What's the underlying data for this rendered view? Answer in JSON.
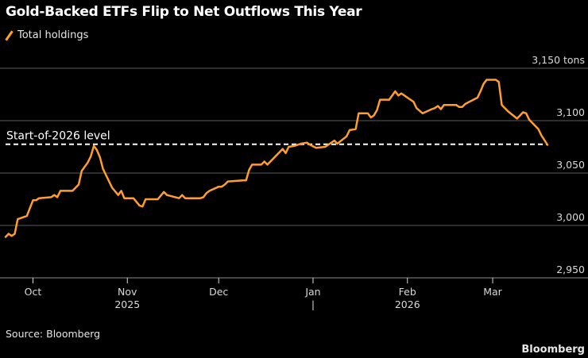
{
  "title": "Gold-Backed ETFs Flip to Net Outflows This Year",
  "legend": {
    "label": "Total holdings",
    "color": "#ff9e2c"
  },
  "source": "Source: Bloomberg",
  "brand": "Bloomberg",
  "chart_data": {
    "type": "line",
    "title": "Gold-Backed ETFs Flip to Net Outflows This Year",
    "ylabel": "",
    "xlabel": "",
    "ylim": [
      2950,
      3150
    ],
    "xlim": [
      "2025-09-22",
      "2026-03-19"
    ],
    "grid": true,
    "legend_position": "top-left",
    "y_ticks": [
      {
        "value": 3150,
        "label": "3,150 tons"
      },
      {
        "value": 3100,
        "label": "3,100"
      },
      {
        "value": 3050,
        "label": "3,050"
      },
      {
        "value": 3000,
        "label": "3,000"
      },
      {
        "value": 2950,
        "label": "2,950"
      }
    ],
    "x_ticks": [
      {
        "date": "2025-10-01",
        "label": "Oct"
      },
      {
        "date": "2025-11-01",
        "label": "Nov"
      },
      {
        "date": "2025-12-01",
        "label": "Dec"
      },
      {
        "date": "2026-01-01",
        "label": "Jan"
      },
      {
        "date": "2026-02-01",
        "label": "Feb"
      },
      {
        "date": "2026-03-01",
        "label": "Mar"
      }
    ],
    "year_labels": [
      {
        "date": "2025-11-01",
        "label": "2025"
      },
      {
        "date": "2026-02-01",
        "label": "2026"
      }
    ],
    "year_separator": {
      "date": "2026-01-01",
      "label": "|"
    },
    "reference_line": {
      "label": "Start-of-2026 level",
      "value": 3077.5,
      "color": "#ffffff",
      "style": "dashed"
    },
    "series": [
      {
        "name": "Total holdings",
        "color": "#ff9e2c",
        "points": [
          [
            "2025-09-22",
            2989
          ],
          [
            "2025-09-23",
            2992
          ],
          [
            "2025-09-24",
            2990
          ],
          [
            "2025-09-25",
            2992
          ],
          [
            "2025-09-26",
            3006
          ],
          [
            "2025-09-29",
            3009
          ],
          [
            "2025-10-01",
            3024
          ],
          [
            "2025-10-02",
            3024
          ],
          [
            "2025-10-03",
            3026
          ],
          [
            "2025-10-07",
            3027
          ],
          [
            "2025-10-08",
            3029
          ],
          [
            "2025-10-09",
            3027
          ],
          [
            "2025-10-10",
            3033
          ],
          [
            "2025-10-14",
            3033
          ],
          [
            "2025-10-16",
            3039
          ],
          [
            "2025-10-17",
            3052
          ],
          [
            "2025-10-19",
            3060
          ],
          [
            "2025-10-20",
            3066
          ],
          [
            "2025-10-21",
            3076
          ],
          [
            "2025-10-22",
            3072
          ],
          [
            "2025-10-23",
            3065
          ],
          [
            "2025-10-24",
            3054
          ],
          [
            "2025-10-27",
            3036
          ],
          [
            "2025-10-29",
            3029
          ],
          [
            "2025-10-30",
            3033
          ],
          [
            "2025-10-31",
            3026
          ],
          [
            "2025-11-03",
            3026
          ],
          [
            "2025-11-05",
            3019
          ],
          [
            "2025-11-06",
            3018
          ],
          [
            "2025-11-07",
            3025
          ],
          [
            "2025-11-11",
            3025
          ],
          [
            "2025-11-13",
            3032
          ],
          [
            "2025-11-14",
            3029
          ],
          [
            "2025-11-18",
            3026
          ],
          [
            "2025-11-19",
            3029
          ],
          [
            "2025-11-20",
            3026
          ],
          [
            "2025-11-25",
            3026
          ],
          [
            "2025-11-26",
            3027
          ],
          [
            "2025-11-27",
            3031
          ],
          [
            "2025-11-28",
            3033
          ],
          [
            "2025-12-01",
            3037
          ],
          [
            "2025-12-02",
            3037
          ],
          [
            "2025-12-03",
            3039
          ],
          [
            "2025-12-04",
            3042
          ],
          [
            "2025-12-09",
            3043
          ],
          [
            "2025-12-10",
            3043
          ],
          [
            "2025-12-11",
            3053
          ],
          [
            "2025-12-12",
            3058
          ],
          [
            "2025-12-15",
            3058
          ],
          [
            "2025-12-16",
            3061
          ],
          [
            "2025-12-17",
            3058
          ],
          [
            "2025-12-19",
            3064
          ],
          [
            "2025-12-22",
            3073
          ],
          [
            "2025-12-23",
            3069
          ],
          [
            "2025-12-24",
            3075
          ],
          [
            "2025-12-26",
            3076
          ],
          [
            "2025-12-28",
            3078
          ],
          [
            "2025-12-30",
            3079
          ],
          [
            "2025-12-31",
            3077
          ],
          [
            "2026-01-02",
            3074
          ],
          [
            "2026-01-05",
            3075
          ],
          [
            "2026-01-08",
            3081
          ],
          [
            "2026-01-09",
            3078
          ],
          [
            "2026-01-12",
            3085
          ],
          [
            "2026-01-13",
            3091
          ],
          [
            "2026-01-15",
            3092
          ],
          [
            "2026-01-16",
            3107
          ],
          [
            "2026-01-19",
            3107
          ],
          [
            "2026-01-20",
            3103
          ],
          [
            "2026-01-21",
            3105
          ],
          [
            "2026-01-22",
            3110
          ],
          [
            "2026-01-23",
            3120
          ],
          [
            "2026-01-26",
            3120
          ],
          [
            "2026-01-28",
            3128
          ],
          [
            "2026-01-29",
            3124
          ],
          [
            "2026-01-30",
            3126
          ],
          [
            "2026-02-02",
            3120
          ],
          [
            "2026-02-03",
            3118
          ],
          [
            "2026-02-04",
            3112
          ],
          [
            "2026-02-06",
            3107
          ],
          [
            "2026-02-09",
            3111
          ],
          [
            "2026-02-10",
            3112
          ],
          [
            "2026-02-11",
            3114
          ],
          [
            "2026-02-12",
            3111
          ],
          [
            "2026-02-13",
            3115
          ],
          [
            "2026-02-17",
            3115
          ],
          [
            "2026-02-18",
            3113
          ],
          [
            "2026-02-19",
            3113
          ],
          [
            "2026-02-20",
            3116
          ],
          [
            "2026-02-24",
            3122
          ],
          [
            "2026-02-25",
            3128
          ],
          [
            "2026-02-26",
            3135
          ],
          [
            "2026-02-27",
            3139
          ],
          [
            "2026-03-02",
            3139
          ],
          [
            "2026-03-03",
            3137
          ],
          [
            "2026-03-04",
            3115
          ],
          [
            "2026-03-06",
            3109
          ],
          [
            "2026-03-09",
            3102
          ],
          [
            "2026-03-11",
            3108
          ],
          [
            "2026-03-12",
            3107
          ],
          [
            "2026-03-13",
            3101
          ],
          [
            "2026-03-16",
            3092
          ],
          [
            "2026-03-17",
            3086
          ],
          [
            "2026-03-19",
            3077
          ]
        ]
      }
    ]
  }
}
